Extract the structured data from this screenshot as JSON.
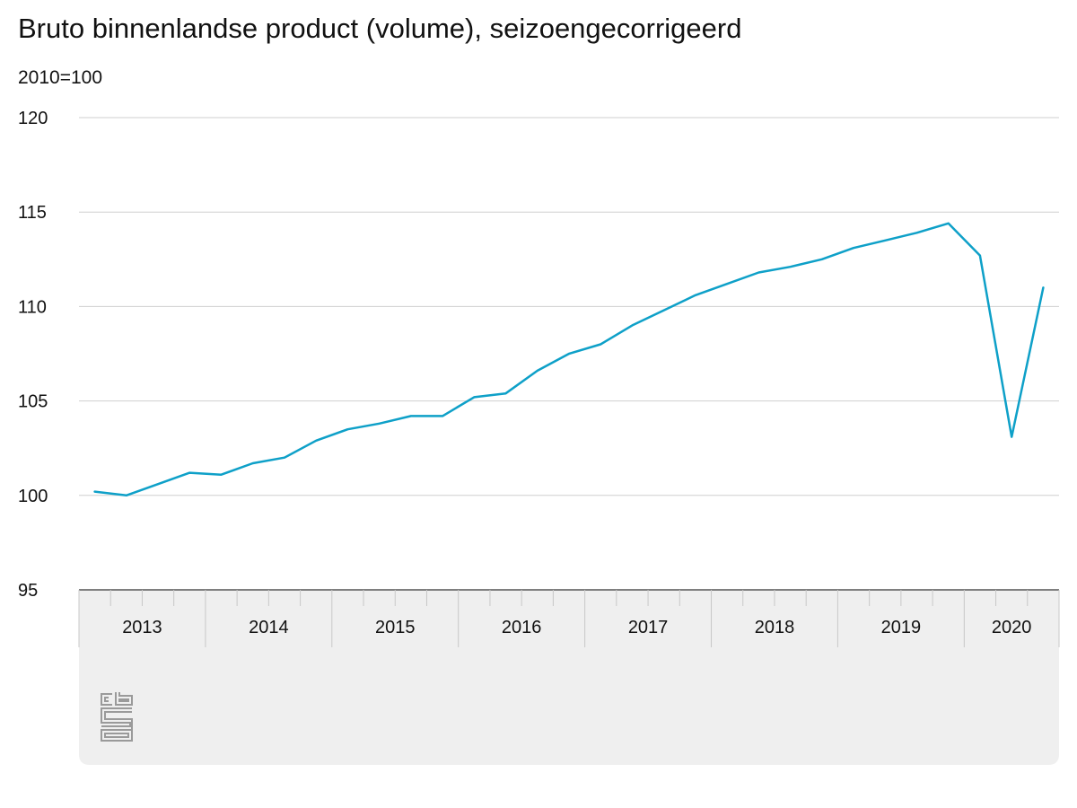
{
  "header": {
    "title": "Bruto binnenlandse product (volume), seizoengecorrigeerd",
    "subtitle": "2010=100"
  },
  "footer": {
    "logo_icon": "cbs-logo-icon",
    "logo_text": "cbs"
  },
  "colors": {
    "line": "#0ea0c8",
    "grid": "#cfcfcf",
    "axis": "#555555",
    "footer_bg": "#efefef",
    "logo": "#9a9a9a"
  },
  "chart_data": {
    "type": "line",
    "title": "Bruto binnenlandse product (volume), seizoengecorrigeerd",
    "subtitle": "2010=100",
    "xlabel": "",
    "ylabel": "",
    "ylim": [
      95,
      120
    ],
    "yticks": [
      95,
      100,
      105,
      110,
      115,
      120
    ],
    "grid": true,
    "legend": "none",
    "x_groups": [
      "2013",
      "2014",
      "2015",
      "2016",
      "2017",
      "2018",
      "2019",
      "2020"
    ],
    "x": [
      "2013 Q1",
      "2013 Q2",
      "2013 Q3",
      "2013 Q4",
      "2014 Q1",
      "2014 Q2",
      "2014 Q3",
      "2014 Q4",
      "2015 Q1",
      "2015 Q2",
      "2015 Q3",
      "2015 Q4",
      "2016 Q1",
      "2016 Q2",
      "2016 Q3",
      "2016 Q4",
      "2017 Q1",
      "2017 Q2",
      "2017 Q3",
      "2017 Q4",
      "2018 Q1",
      "2018 Q2",
      "2018 Q3",
      "2018 Q4",
      "2019 Q1",
      "2019 Q2",
      "2019 Q3",
      "2019 Q4",
      "2020 Q1",
      "2020 Q2",
      "2020 Q3"
    ],
    "series": [
      {
        "values": [
          100.2,
          100.0,
          100.6,
          101.2,
          101.1,
          101.7,
          102.0,
          102.9,
          103.5,
          103.8,
          104.2,
          104.2,
          105.2,
          105.4,
          106.6,
          107.5,
          108.0,
          109.0,
          109.8,
          110.6,
          111.2,
          111.8,
          112.1,
          112.5,
          113.1,
          113.5,
          113.9,
          114.4,
          112.7,
          103.1,
          111.0
        ]
      }
    ]
  }
}
